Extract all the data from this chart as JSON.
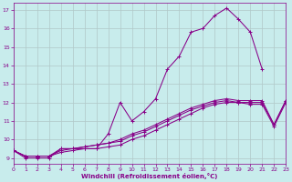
{
  "xlabel": "Windchill (Refroidissement éolien,°C)",
  "bg_color": "#c8ecec",
  "grid_color": "#b0c8c8",
  "line_color": "#880088",
  "xlim": [
    0,
    23
  ],
  "ylim": [
    8.7,
    17.4
  ],
  "xticks": [
    0,
    1,
    2,
    3,
    4,
    5,
    6,
    7,
    8,
    9,
    10,
    11,
    12,
    13,
    14,
    15,
    16,
    17,
    18,
    19,
    20,
    21,
    22,
    23
  ],
  "yticks": [
    9,
    10,
    11,
    12,
    13,
    14,
    15,
    16,
    17
  ],
  "line1_x": [
    0,
    1,
    2,
    3,
    4,
    5,
    6,
    7,
    8,
    9,
    10,
    11,
    12,
    13,
    14,
    15,
    16,
    17,
    18,
    19,
    20,
    21
  ],
  "line1_y": [
    9.4,
    9.0,
    9.0,
    9.0,
    9.5,
    9.5,
    9.5,
    9.5,
    10.3,
    12.0,
    11.0,
    11.5,
    12.2,
    13.8,
    14.5,
    15.8,
    16.0,
    16.7,
    17.1,
    16.5,
    15.8,
    13.8
  ],
  "line2_x": [
    0,
    1,
    2,
    3,
    4,
    5,
    6,
    7,
    8,
    9,
    10,
    11,
    12,
    13,
    14,
    15,
    16,
    17,
    18,
    19,
    20,
    21,
    22,
    23
  ],
  "line2_y": [
    9.4,
    9.1,
    9.1,
    9.1,
    9.5,
    9.5,
    9.6,
    9.7,
    9.8,
    10.0,
    10.3,
    10.5,
    10.8,
    11.1,
    11.4,
    11.7,
    11.9,
    12.1,
    12.2,
    12.1,
    12.1,
    12.1,
    10.8,
    12.1
  ],
  "line3_x": [
    0,
    1,
    2,
    3,
    4,
    5,
    6,
    7,
    8,
    9,
    10,
    11,
    12,
    13,
    14,
    15,
    16,
    17,
    18,
    19,
    20,
    21,
    22,
    23
  ],
  "line3_y": [
    9.4,
    9.1,
    9.1,
    9.1,
    9.4,
    9.5,
    9.6,
    9.7,
    9.8,
    9.9,
    10.2,
    10.4,
    10.7,
    11.0,
    11.3,
    11.6,
    11.8,
    12.0,
    12.1,
    12.0,
    11.9,
    11.9,
    10.7,
    12.0
  ],
  "line4_x": [
    0,
    1,
    2,
    3,
    4,
    5,
    6,
    7,
    8,
    9,
    10,
    11,
    12,
    13,
    14,
    15,
    16,
    17,
    18,
    19,
    20,
    21,
    22,
    23
  ],
  "line4_y": [
    9.4,
    9.1,
    9.1,
    9.1,
    9.3,
    9.4,
    9.5,
    9.5,
    9.6,
    9.7,
    10.0,
    10.2,
    10.5,
    10.8,
    11.1,
    11.4,
    11.7,
    11.9,
    12.0,
    12.0,
    12.0,
    12.0,
    10.8,
    12.1
  ]
}
